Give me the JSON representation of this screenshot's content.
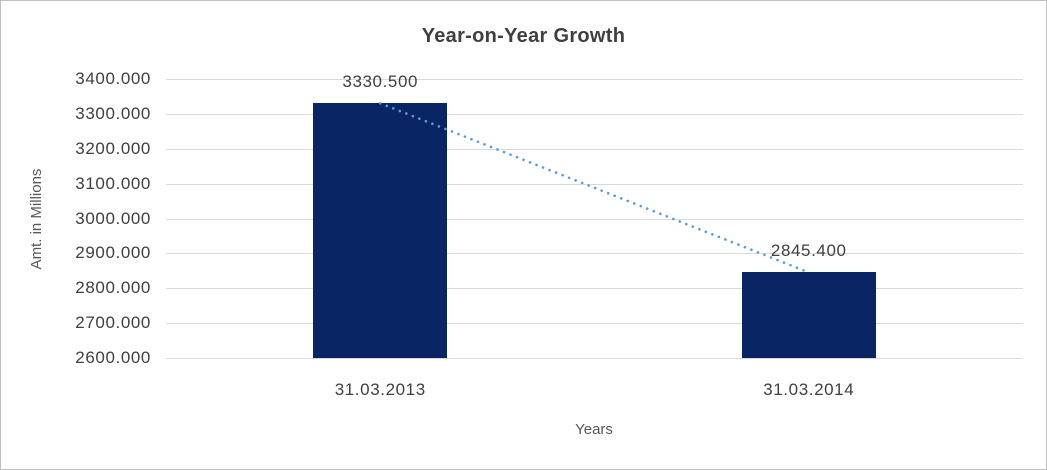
{
  "chart_data": {
    "type": "bar",
    "title": "Year-on-Year Growth",
    "xlabel": "Years",
    "ylabel": "Amt. in Millions",
    "categories": [
      "31.03.2013",
      "31.03.2014"
    ],
    "values": [
      3330.5,
      2845.4
    ],
    "data_labels": [
      "3330.500",
      "2845.400"
    ],
    "ylim": [
      2600,
      3400
    ],
    "ytick_step": 100,
    "yticks": [
      {
        "value": 3400,
        "label": "3400.000"
      },
      {
        "value": 3300,
        "label": "3300.000"
      },
      {
        "value": 3200,
        "label": "3200.000"
      },
      {
        "value": 3100,
        "label": "3100.000"
      },
      {
        "value": 3000,
        "label": "3000.000"
      },
      {
        "value": 2900,
        "label": "2900.000"
      },
      {
        "value": 2800,
        "label": "2800.000"
      },
      {
        "value": 2700,
        "label": "2700.000"
      },
      {
        "value": 2600,
        "label": "2600.000"
      }
    ],
    "grid": "horizontal",
    "legend": "none",
    "trendline": {
      "type": "linear",
      "style": "dotted",
      "connects": [
        [
          0,
          3330.5
        ],
        [
          1,
          2845.4
        ]
      ]
    },
    "colors": {
      "bar": "#0A2563",
      "trendline": "#5B9BD5",
      "gridline": "#D9D9D9",
      "title_text": "#3F3F3F",
      "axis_text": "#404040",
      "axis_title_text": "#595959",
      "frame_border": "#BEBEBE",
      "background": "#FFFFFF"
    }
  }
}
